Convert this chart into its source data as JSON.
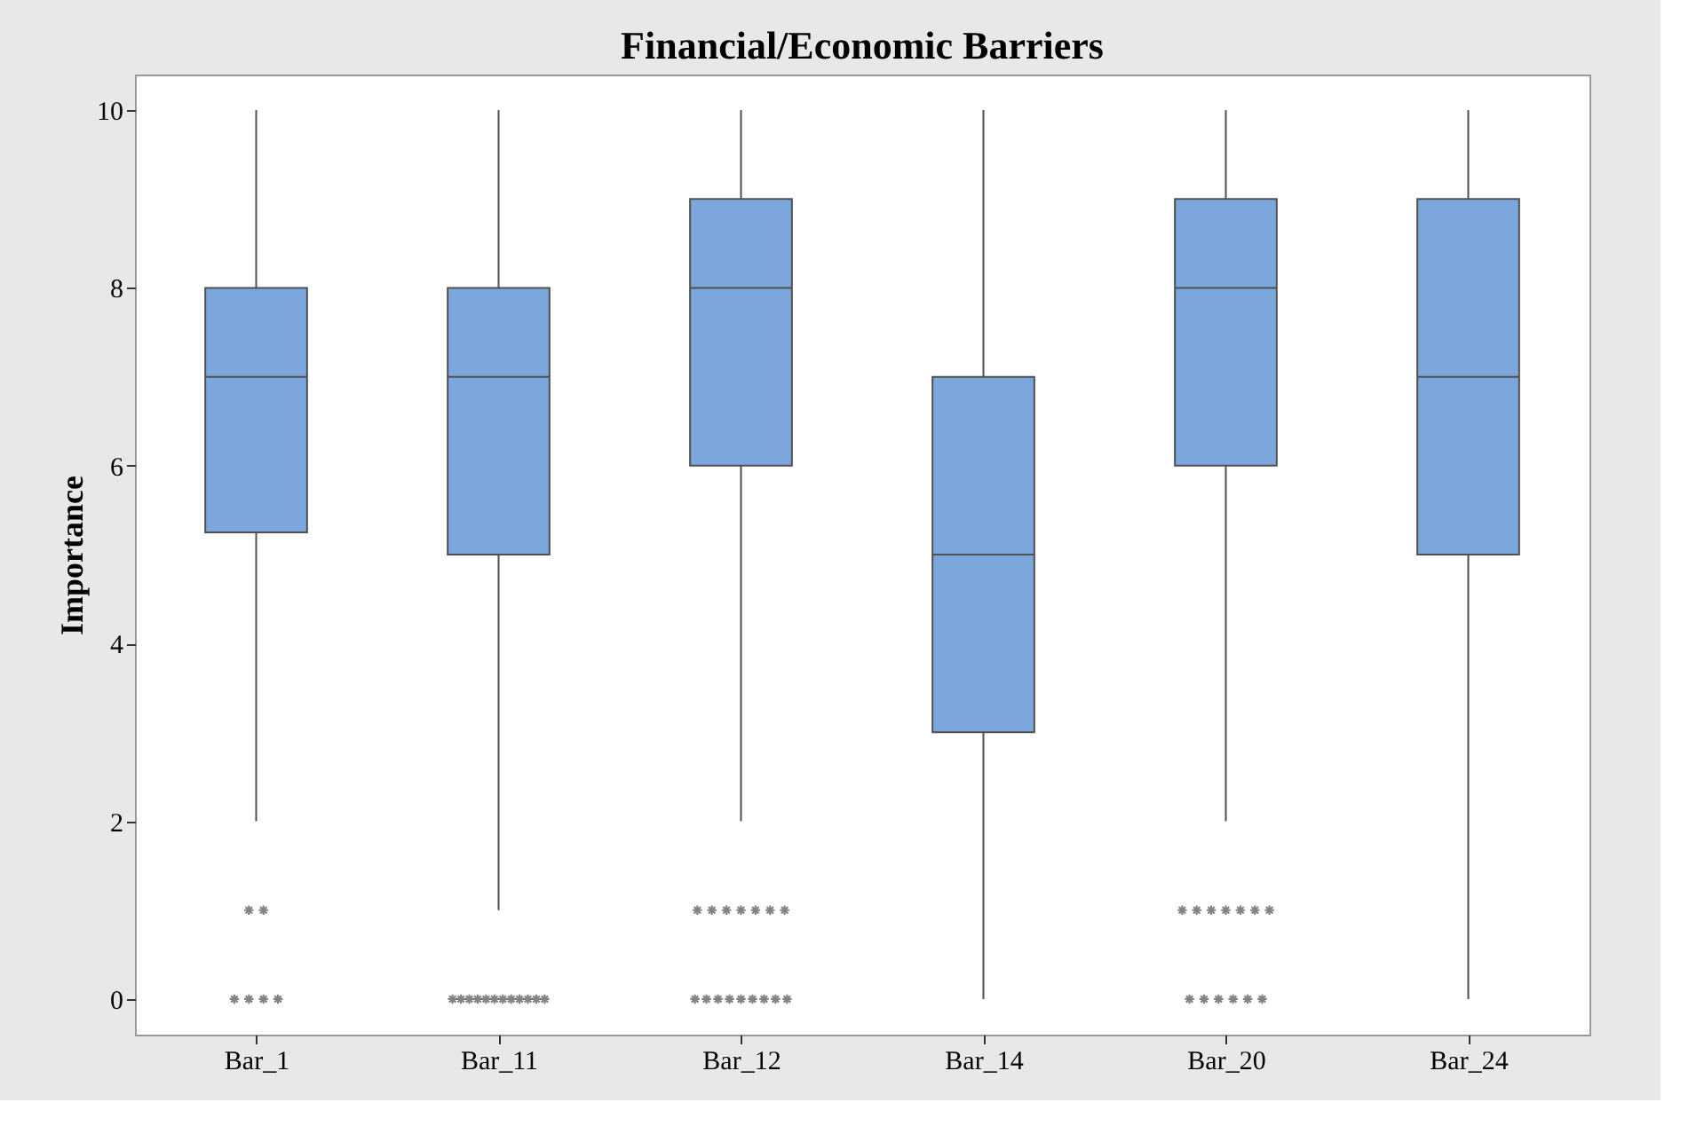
{
  "chart_data": {
    "type": "box",
    "title": "Financial/Economic Barriers",
    "ylabel": "Importance",
    "categories": [
      "Bar_1",
      "Bar_11",
      "Bar_12",
      "Bar_14",
      "Bar_20",
      "Bar_24"
    ],
    "color": "#7ba7dc",
    "boxes": [
      {
        "low": 2,
        "q1": 5.25,
        "median": 7,
        "q3": 8,
        "high": 10,
        "outliers": [
          1,
          1,
          0,
          0,
          0,
          0
        ]
      },
      {
        "low": 1,
        "q1": 5,
        "median": 7,
        "q3": 8,
        "high": 10,
        "outliers": [
          0,
          0,
          0,
          0,
          0,
          0,
          0,
          0,
          0,
          0,
          0,
          0
        ]
      },
      {
        "low": 2,
        "q1": 6,
        "median": 8,
        "q3": 9,
        "high": 10,
        "outliers": [
          1,
          1,
          1,
          1,
          1,
          1,
          1,
          0,
          0,
          0,
          0,
          0,
          0,
          0,
          0,
          0
        ]
      },
      {
        "low": 0,
        "q1": 3,
        "median": 5,
        "q3": 7,
        "high": 10
      },
      {
        "low": 2,
        "q1": 6,
        "median": 8,
        "q3": 9,
        "high": 10,
        "outliers": [
          1,
          1,
          1,
          1,
          1,
          1,
          1,
          0,
          0,
          0,
          0,
          0,
          0
        ]
      },
      {
        "low": 0,
        "q1": 5,
        "median": 7,
        "q3": 9,
        "high": 10
      }
    ],
    "ylim": [
      -0.4,
      10.4
    ],
    "yticks": [
      0,
      2,
      4,
      6,
      8,
      10
    ],
    "grid": false,
    "marker": "cross"
  }
}
